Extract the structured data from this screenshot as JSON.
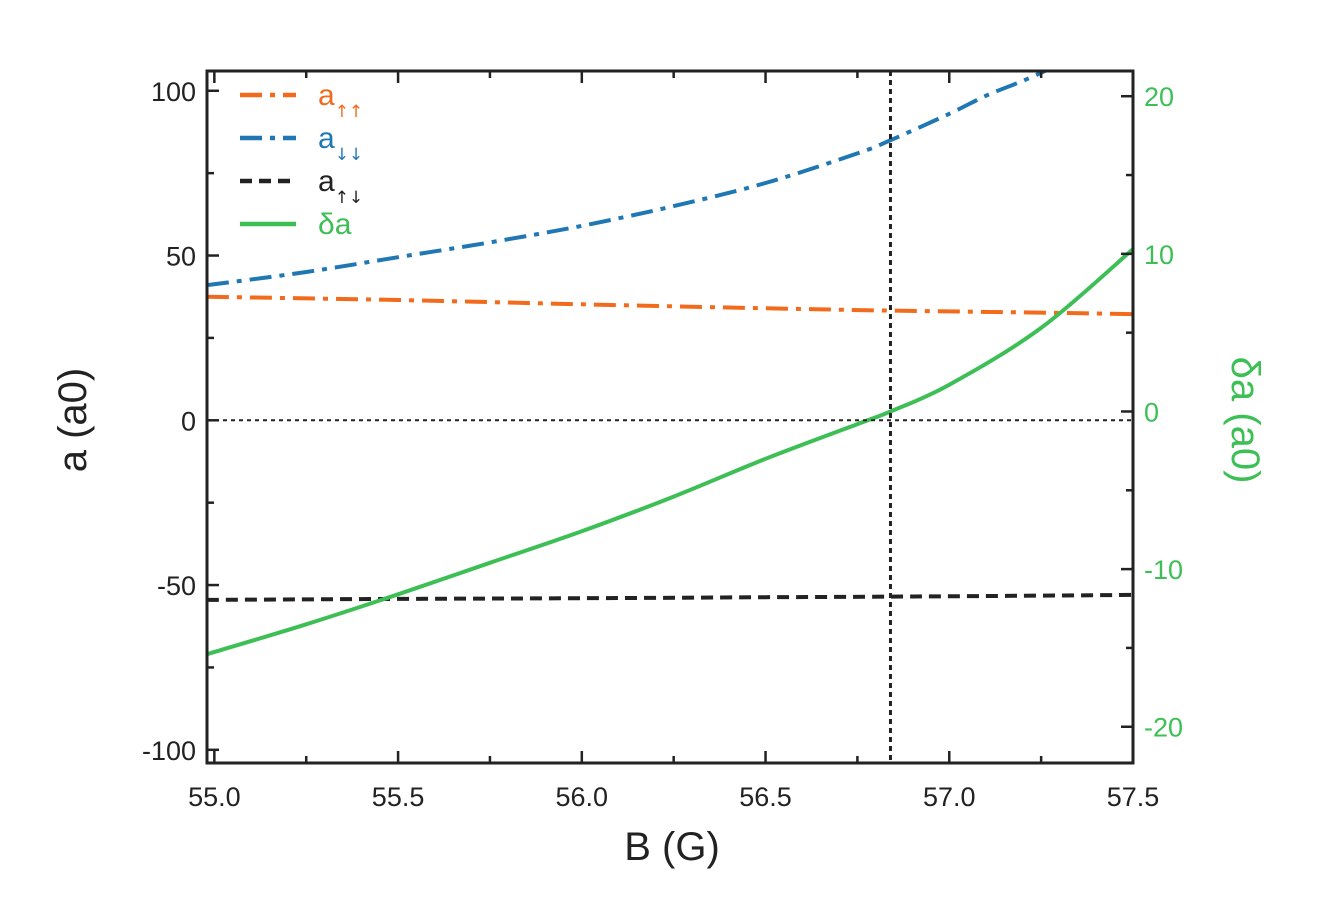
{
  "chart_data": {
    "type": "line",
    "xlabel": "B (G)",
    "ylabel_left": "a (a0)",
    "ylabel_right": "δa (a0)",
    "xlim": [
      54.98,
      57.5
    ],
    "ylim_left": [
      -104,
      106
    ],
    "ylim_right": [
      -22.3,
      21.6
    ],
    "x_ticks": [
      "55.0",
      "55.5",
      "56.0",
      "56.5",
      "57.0",
      "57.5"
    ],
    "x_tick_values": [
      55.0,
      55.5,
      56.0,
      56.5,
      57.0,
      57.5
    ],
    "y_left_ticks": [
      "100",
      "50",
      "0",
      "-50",
      "-100"
    ],
    "y_left_tick_values": [
      100,
      50,
      0,
      -50,
      -100
    ],
    "y_right_ticks": [
      "20",
      "10",
      "0",
      "-10",
      "-20"
    ],
    "y_right_tick_values": [
      20,
      10,
      0,
      -10,
      -20
    ],
    "reference_lines": {
      "vertical_x": 56.84,
      "horizontal_y": 0
    },
    "grid": false,
    "legend_position": "top-left",
    "legend": [
      {
        "base": "a",
        "sub": "↑↑",
        "color": "#f26b1d",
        "style": "dash-dot"
      },
      {
        "base": "a",
        "sub": "↓↓",
        "color": "#1f77b4",
        "style": "dash-dot"
      },
      {
        "base": "a",
        "sub": "↑↓",
        "color": "#222222",
        "style": "dash"
      },
      {
        "base": "δa",
        "sub": "",
        "color": "#3dbf56",
        "style": "solid"
      }
    ],
    "series": [
      {
        "key": "a_upup",
        "axis": "left",
        "color": "#f26b1d",
        "style": "dash-dot",
        "x": [
          54.98,
          55.5,
          56.0,
          56.5,
          56.84,
          57.3,
          57.5
        ],
        "y": [
          37.5,
          36.5,
          35.2,
          34.0,
          33.3,
          32.6,
          32.2
        ]
      },
      {
        "key": "a_downdown",
        "axis": "left",
        "color": "#1f77b4",
        "style": "dash-dot",
        "x": [
          54.98,
          55.25,
          55.5,
          55.75,
          56.0,
          56.25,
          56.5,
          56.75,
          56.84,
          57.0,
          57.1,
          57.2,
          57.28
        ],
        "y": [
          41,
          45,
          49.5,
          54,
          59,
          65,
          72,
          81,
          85,
          93,
          98.5,
          103,
          107
        ]
      },
      {
        "key": "a_updown",
        "axis": "left",
        "color": "#222222",
        "style": "dash",
        "x": [
          54.98,
          55.5,
          56.0,
          56.5,
          56.84,
          57.0,
          57.5
        ],
        "y": [
          -54.5,
          -54.2,
          -54.0,
          -53.7,
          -53.5,
          -53.4,
          -53.0
        ]
      },
      {
        "key": "delta_a",
        "axis": "right",
        "color": "#3dbf56",
        "style": "solid",
        "x": [
          54.98,
          55.25,
          55.5,
          55.75,
          56.0,
          56.25,
          56.5,
          56.75,
          56.84,
          57.0,
          57.25,
          57.5
        ],
        "y": [
          -15.4,
          -13.5,
          -11.6,
          -9.6,
          -7.6,
          -5.4,
          -3.0,
          -0.8,
          0.0,
          1.7,
          5.3,
          10.3
        ]
      }
    ]
  }
}
